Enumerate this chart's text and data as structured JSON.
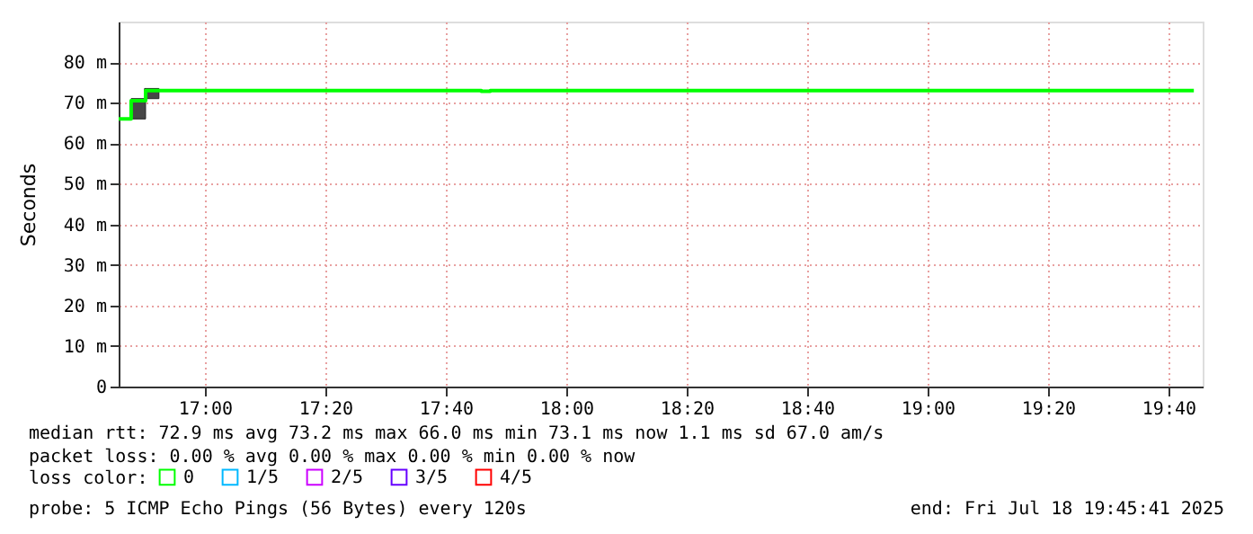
{
  "chart_data": {
    "type": "step",
    "ylabel": "Seconds",
    "legend_title": "loss color:",
    "legend": "bottom left",
    "grid": true,
    "line_style": "solid",
    "marker": "none",
    "xlim": [
      16.7614,
      19.7614
    ],
    "xticks": [
      {
        "value": 17,
        "label": "17:00"
      },
      {
        "value": 17.333333,
        "label": "17:20"
      },
      {
        "value": 17.666667,
        "label": "17:40"
      },
      {
        "value": 18,
        "label": "18:00"
      },
      {
        "value": 18.333333,
        "label": "18:20"
      },
      {
        "value": 18.666667,
        "label": "18:40"
      },
      {
        "value": 19,
        "label": "19:00"
      },
      {
        "value": 19.333333,
        "label": "19:20"
      },
      {
        "value": 19.666667,
        "label": "19:40"
      }
    ],
    "ylim": [
      0,
      90
    ],
    "yticks": [
      0,
      {
        "value": 10,
        "label": "10 m"
      },
      {
        "value": 20,
        "label": "20 m"
      },
      {
        "value": 30,
        "label": "30 m"
      },
      {
        "value": 40,
        "label": "40 m"
      },
      {
        "value": 50,
        "label": "50 m"
      },
      {
        "value": 60,
        "label": "60 m"
      },
      {
        "value": 70,
        "label": "70 m"
      },
      {
        "value": 80,
        "label": "80 m"
      }
    ],
    "series": [
      {
        "type": "bar",
        "color": "#474747",
        "x": [
          16.816,
          16.853
        ],
        "base": [
          66,
          71
        ],
        "values": [
          5,
          2.5
        ]
      },
      {
        "name": "0",
        "color": "#00ff00",
        "x": [
          16.7614,
          16.796,
          16.836,
          16.871,
          17.765,
          17.79,
          19.737
        ],
        "values": [
          66,
          70.5,
          73,
          73,
          72.8,
          73,
          73
        ]
      },
      {
        "name": "1/5",
        "color": "#00b8ff"
      },
      {
        "name": "2/5",
        "color": "#cc00ff"
      },
      {
        "name": "3/5",
        "color": "#6600ff"
      },
      {
        "name": "4/5",
        "color": "#ff0000"
      }
    ],
    "annotations": [
      "median rtt:  72.9 ms avg  73.2 ms max  66.0 ms min  73.1 ms now  1.1 ms sd  67.0   am/s",
      "packet loss: 0.00 % avg  0.00 % max  0.00 % min  0.00 % now",
      "probe:       5 ICMP Echo Pings (56 Bytes) every 120s",
      "end: Fri Jul 18 19:45:41 2025"
    ]
  }
}
